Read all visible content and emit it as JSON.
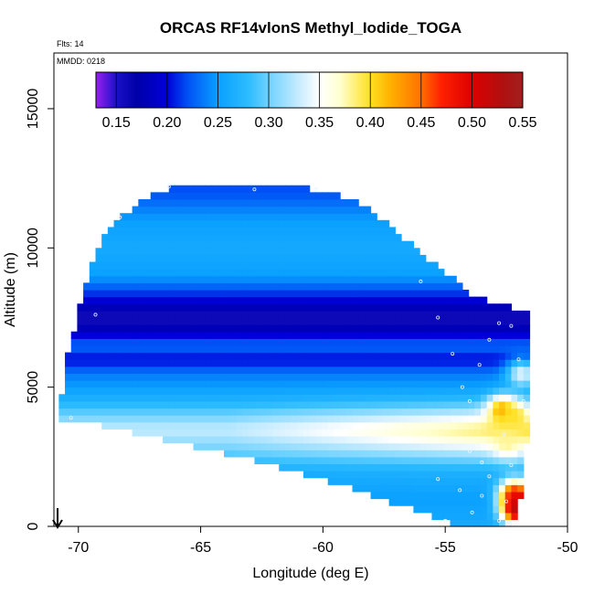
{
  "chart_data": {
    "type": "heatmap",
    "title": "ORCAS RF14vlonS Methyl_Iodide_TOGA",
    "notes": [
      "Flts: 14",
      "MMDD: 0218"
    ],
    "xlabel": "Longitude (deg E)",
    "ylabel": "Altitude (m)",
    "xlim": [
      -71,
      -50
    ],
    "ylim": [
      0,
      17000
    ],
    "xticks": [
      -70,
      -65,
      -60,
      -55,
      -50
    ],
    "yticks": [
      0,
      5000,
      10000,
      15000
    ],
    "colorbar": {
      "ticks": [
        0.15,
        0.2,
        0.25,
        0.3,
        0.35,
        0.4,
        0.45,
        0.5,
        0.55
      ],
      "range": [
        0.13,
        0.55
      ],
      "stops": [
        {
          "v": 0.13,
          "c": "#9a20f0"
        },
        {
          "v": 0.15,
          "c": "#1a10c8"
        },
        {
          "v": 0.17,
          "c": "#0000a8"
        },
        {
          "v": 0.2,
          "c": "#0000d8"
        },
        {
          "v": 0.22,
          "c": "#0050f5"
        },
        {
          "v": 0.25,
          "c": "#0aa0ff"
        },
        {
          "v": 0.28,
          "c": "#2cbcff"
        },
        {
          "v": 0.3,
          "c": "#6fd2ff"
        },
        {
          "v": 0.33,
          "c": "#c8ecff"
        },
        {
          "v": 0.35,
          "c": "#ffffff"
        },
        {
          "v": 0.37,
          "c": "#ffffd0"
        },
        {
          "v": 0.4,
          "c": "#ffe020"
        },
        {
          "v": 0.42,
          "c": "#ffb000"
        },
        {
          "v": 0.45,
          "c": "#ff7000"
        },
        {
          "v": 0.47,
          "c": "#ff2000"
        },
        {
          "v": 0.5,
          "c": "#dd0000"
        },
        {
          "v": 0.53,
          "c": "#b01010"
        },
        {
          "v": 0.55,
          "c": "#a02020"
        }
      ]
    },
    "field_profile": [
      {
        "alt": 0,
        "value": 0.26
      },
      {
        "alt": 1000,
        "value": 0.25
      },
      {
        "alt": 2000,
        "value": 0.265
      },
      {
        "alt": 3000,
        "value": 0.31
      },
      {
        "alt": 3500,
        "value": 0.33
      },
      {
        "alt": 4000,
        "value": 0.3
      },
      {
        "alt": 4500,
        "value": 0.27
      },
      {
        "alt": 5000,
        "value": 0.25
      },
      {
        "alt": 5500,
        "value": 0.235
      },
      {
        "alt": 6000,
        "value": 0.2
      },
      {
        "alt": 6500,
        "value": 0.23
      },
      {
        "alt": 7000,
        "value": 0.19
      },
      {
        "alt": 7500,
        "value": 0.15
      },
      {
        "alt": 8000,
        "value": 0.19
      },
      {
        "alt": 8500,
        "value": 0.22
      },
      {
        "alt": 9000,
        "value": 0.25
      },
      {
        "alt": 10000,
        "value": 0.26
      },
      {
        "alt": 11000,
        "value": 0.25
      },
      {
        "alt": 12000,
        "value": 0.22
      }
    ],
    "coverage": [
      {
        "lon": -70.8,
        "alt_min": 3800,
        "alt_max": 4000
      },
      {
        "lon": -70.5,
        "alt_min": 3800,
        "alt_max": 5900
      },
      {
        "lon": -70.0,
        "alt_min": 3800,
        "alt_max": 7700
      },
      {
        "lon": -69.5,
        "alt_min": 3700,
        "alt_max": 9300
      },
      {
        "lon": -69.0,
        "alt_min": 3600,
        "alt_max": 10400
      },
      {
        "lon": -68.0,
        "alt_min": 3400,
        "alt_max": 11300
      },
      {
        "lon": -67.0,
        "alt_min": 3200,
        "alt_max": 11900
      },
      {
        "lon": -66.0,
        "alt_min": 3000,
        "alt_max": 12200
      },
      {
        "lon": -64.0,
        "alt_min": 2600,
        "alt_max": 12200
      },
      {
        "lon": -62.0,
        "alt_min": 2200,
        "alt_max": 12200
      },
      {
        "lon": -60.0,
        "alt_min": 1700,
        "alt_max": 12100
      },
      {
        "lon": -59.0,
        "alt_min": 1400,
        "alt_max": 11800
      },
      {
        "lon": -58.0,
        "alt_min": 1100,
        "alt_max": 11300
      },
      {
        "lon": -57.0,
        "alt_min": 800,
        "alt_max": 10600
      },
      {
        "lon": -56.0,
        "alt_min": 500,
        "alt_max": 9800
      },
      {
        "lon": -55.0,
        "alt_min": 200,
        "alt_max": 9100
      },
      {
        "lon": -54.5,
        "alt_min": 0,
        "alt_max": 8900
      },
      {
        "lon": -54.0,
        "alt_min": 0,
        "alt_max": 8300
      },
      {
        "lon": -53.5,
        "alt_min": 0,
        "alt_max": 8200
      },
      {
        "lon": -53.0,
        "alt_min": 0,
        "alt_max": 8000
      },
      {
        "lon": -52.5,
        "alt_min": 0,
        "alt_max": 7900
      },
      {
        "lon": -52.0,
        "alt_min": 300,
        "alt_max": 7800
      },
      {
        "lon": -51.6,
        "alt_min": 3500,
        "alt_max": 7700
      }
    ],
    "hotspots": [
      {
        "lon": -52.8,
        "alt": 4200,
        "value": 0.43
      },
      {
        "lon": -52.3,
        "alt": 4000,
        "value": 0.4
      },
      {
        "lon": -52.3,
        "alt": 1200,
        "value": 0.46
      },
      {
        "lon": -52.0,
        "alt": 900,
        "value": 0.49
      },
      {
        "lon": -52.2,
        "alt": 600,
        "value": 0.52
      },
      {
        "lon": -52.6,
        "alt": 3000,
        "value": 0.38
      },
      {
        "lon": -52.0,
        "alt": 5500,
        "value": 0.34
      }
    ],
    "flight_points": [
      {
        "lon": -70.3,
        "alt": 3900
      },
      {
        "lon": -69.3,
        "alt": 7600
      },
      {
        "lon": -68.3,
        "alt": 11100
      },
      {
        "lon": -66.3,
        "alt": 12200
      },
      {
        "lon": -62.8,
        "alt": 12100
      },
      {
        "lon": -60.3,
        "alt": 12100
      },
      {
        "lon": -56.0,
        "alt": 8800
      },
      {
        "lon": -55.3,
        "alt": 7500
      },
      {
        "lon": -54.7,
        "alt": 6200
      },
      {
        "lon": -54.3,
        "alt": 5000
      },
      {
        "lon": -54.0,
        "alt": 4500
      },
      {
        "lon": -53.6,
        "alt": 5800
      },
      {
        "lon": -53.2,
        "alt": 6700
      },
      {
        "lon": -52.8,
        "alt": 7300
      },
      {
        "lon": -52.3,
        "alt": 7200
      },
      {
        "lon": -52.0,
        "alt": 6000
      },
      {
        "lon": -51.8,
        "alt": 4500
      },
      {
        "lon": -53.3,
        "alt": 4200
      },
      {
        "lon": -52.6,
        "alt": 3300
      },
      {
        "lon": -54.0,
        "alt": 2700
      },
      {
        "lon": -53.5,
        "alt": 2300
      },
      {
        "lon": -52.3,
        "alt": 2200
      },
      {
        "lon": -53.2,
        "alt": 1800
      },
      {
        "lon": -54.4,
        "alt": 1300
      },
      {
        "lon": -55.3,
        "alt": 1700
      },
      {
        "lon": -53.5,
        "alt": 1100
      },
      {
        "lon": -52.5,
        "alt": 900
      },
      {
        "lon": -55.0,
        "alt": 200
      },
      {
        "lon": -53.9,
        "alt": 500
      },
      {
        "lon": -52.8,
        "alt": 200
      }
    ]
  }
}
